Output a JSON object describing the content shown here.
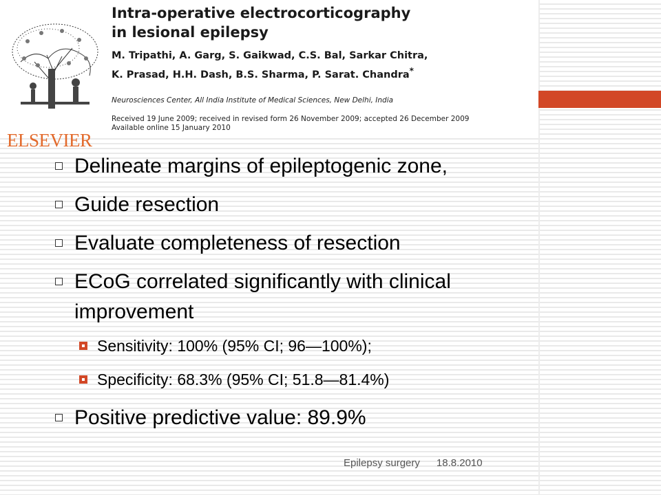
{
  "header": {
    "publisher_logo": "ELSEVIER",
    "paper_title_line1": "Intra-operative electrocorticography",
    "paper_title_line2": "in lesional epilepsy",
    "authors_line1": "M. Tripathi, A. Garg, S. Gaikwad, C.S. Bal, Sarkar Chitra,",
    "authors_line2": "K. Prasad, H.H. Dash, B.S. Sharma, P. Sarat. Chandra",
    "authors_mark": "*",
    "affiliation": "Neurosciences Center, All India Institute of Medical Sciences, New Delhi, India",
    "dates_line1": "Received 19 June 2009; received in revised form 26 November 2009; accepted 26 December 2009",
    "dates_line2": "Available online 15 January 2010"
  },
  "bullets": [
    "Delineate margins of epileptogenic zone,",
    "Guide resection",
    "Evaluate completeness of resection",
    "ECoG correlated significantly with clinical improvement",
    "Positive predictive value: 89.9%"
  ],
  "sub_bullets": [
    "Sensitivity: 100% (95% CI; 96—100%);",
    "Specificity: 68.3% (95% CI; 51.8—81.4%)"
  ],
  "footer": {
    "topic": "Epilepsy surgery",
    "date": "18.8.2010"
  },
  "colors": {
    "accent": "#d24726",
    "logo": "#e26a2c"
  }
}
